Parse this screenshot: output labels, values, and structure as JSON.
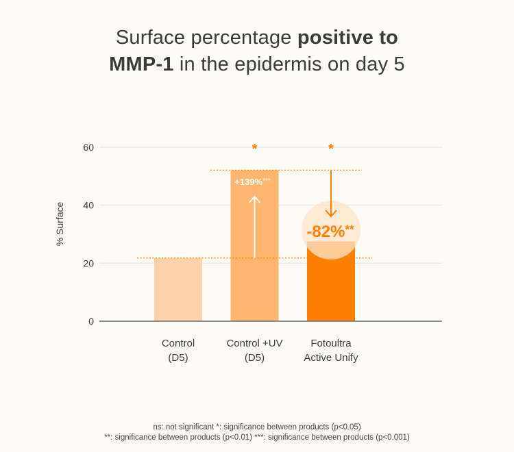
{
  "title": {
    "line1_regular": "Surface percentage ",
    "line1_bold": "positive to",
    "line2_bold": "MMP-1",
    "line2_regular": " in the epidermis on day 5"
  },
  "chart_data": {
    "type": "bar",
    "title": "Surface percentage positive to MMP-1 in the epidermis on day 5",
    "xlabel": "",
    "ylabel": "% Surface",
    "ylim": [
      0,
      60
    ],
    "yticks": [
      0,
      20,
      40,
      60
    ],
    "grid": true,
    "categories": [
      {
        "line1": "Control",
        "line2": "(D5)"
      },
      {
        "line1": "Control +UV",
        "line2": "(D5)"
      },
      {
        "line1": "Fotoultra",
        "line2": "Active Unify"
      }
    ],
    "values": [
      21.8,
      52.1,
      27.5
    ],
    "colors": [
      "#fdd3ae",
      "#fdb56f",
      "#ff7f00"
    ],
    "significance_marks": [
      "",
      "*",
      "*"
    ],
    "annotations": [
      {
        "bar": 1,
        "text": "+139%",
        "stars": "***",
        "direction": "up",
        "from": 21.8,
        "to": 52.1
      },
      {
        "bar": 2,
        "text": "-82%",
        "stars": "**",
        "direction": "down",
        "from": 52.1,
        "to": 27.5
      }
    ],
    "reference_lines": [
      21.8,
      52.1
    ]
  },
  "colors": {
    "accent": "#ff7f00",
    "background": "#fdfbf6",
    "text": "#3a3a3a",
    "grid": "#e9e7e2",
    "circle": "#fde3c9"
  },
  "footnote": {
    "line1": "ns: not significant *: significance between products (p<0.05)",
    "line2": "**: significance between products (p<0.01) ***: significance between products (p<0.001)"
  }
}
